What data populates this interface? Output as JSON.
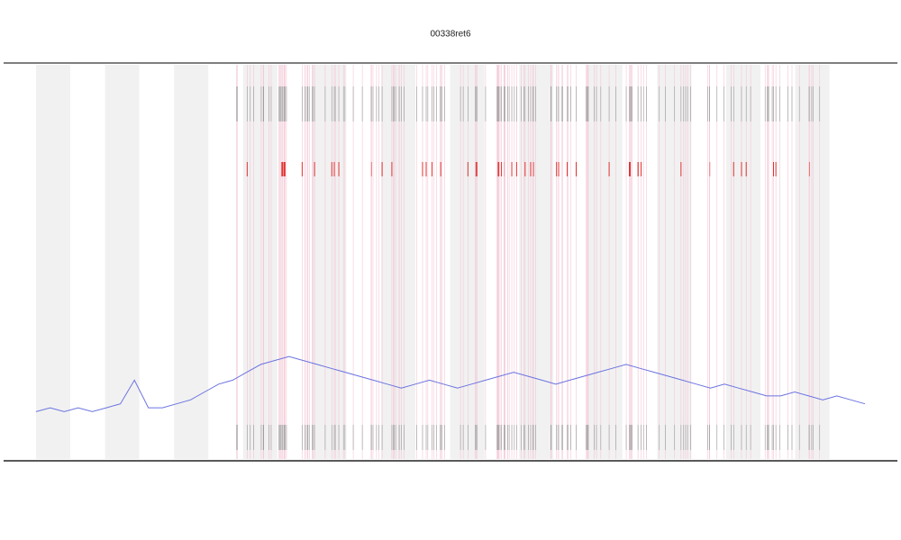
{
  "chart_data": {
    "type": "line",
    "title": "00338ret6",
    "x": [
      0,
      1,
      2,
      3,
      4,
      5,
      6,
      7,
      8,
      9,
      10,
      11,
      12,
      13,
      14,
      15,
      16,
      17,
      18,
      19,
      20,
      21,
      22,
      23,
      24,
      25,
      26,
      27,
      28,
      29,
      30,
      31,
      32,
      33,
      34,
      35,
      36,
      37,
      38,
      39,
      40,
      41,
      42,
      43,
      44,
      45,
      46,
      47,
      48,
      49,
      50,
      51,
      52,
      53,
      54,
      55,
      56,
      57,
      58,
      59
    ],
    "xlim": [
      0,
      59
    ],
    "ylim": [
      0,
      100
    ],
    "series": [
      {
        "name": "series",
        "color": "#6b73e0",
        "values": [
          12,
          13,
          12,
          13,
          12,
          13,
          14,
          20,
          13,
          13,
          14,
          15,
          17,
          19,
          20,
          22,
          24,
          25,
          26,
          25,
          24,
          23,
          22,
          21,
          20,
          19,
          18,
          19,
          20,
          19,
          18,
          19,
          20,
          21,
          22,
          21,
          20,
          19,
          20,
          21,
          22,
          23,
          24,
          23,
          22,
          21,
          20,
          19,
          18,
          19,
          18,
          17,
          16,
          16,
          17,
          16,
          15,
          16,
          15,
          14
        ]
      }
    ]
  }
}
